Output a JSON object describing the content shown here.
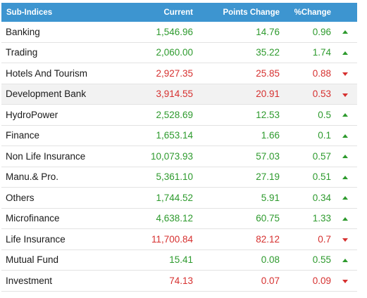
{
  "table": {
    "headers": {
      "name": "Sub-Indices",
      "current": "Current",
      "points": "Points Change",
      "pct": "%Change"
    },
    "rows": [
      {
        "name": "Banking",
        "current": "1,546.96",
        "points": "14.76",
        "pct": "0.96",
        "dir": "up"
      },
      {
        "name": "Trading",
        "current": "2,060.00",
        "points": "35.22",
        "pct": "1.74",
        "dir": "up"
      },
      {
        "name": "Hotels And Tourism",
        "current": "2,927.35",
        "points": "25.85",
        "pct": "0.88",
        "dir": "down"
      },
      {
        "name": "Development Bank",
        "current": "3,914.55",
        "points": "20.91",
        "pct": "0.53",
        "dir": "down"
      },
      {
        "name": "HydroPower",
        "current": "2,528.69",
        "points": "12.53",
        "pct": "0.5",
        "dir": "up"
      },
      {
        "name": "Finance",
        "current": "1,653.14",
        "points": "1.66",
        "pct": "0.1",
        "dir": "up"
      },
      {
        "name": "Non Life Insurance",
        "current": "10,073.93",
        "points": "57.03",
        "pct": "0.57",
        "dir": "up"
      },
      {
        "name": "Manu.& Pro.",
        "current": "5,361.10",
        "points": "27.19",
        "pct": "0.51",
        "dir": "up"
      },
      {
        "name": "Others",
        "current": "1,744.52",
        "points": "5.91",
        "pct": "0.34",
        "dir": "up"
      },
      {
        "name": "Microfinance",
        "current": "4,638.12",
        "points": "60.75",
        "pct": "1.33",
        "dir": "up"
      },
      {
        "name": "Life Insurance",
        "current": "11,700.84",
        "points": "82.12",
        "pct": "0.7",
        "dir": "down"
      },
      {
        "name": "Mutual Fund",
        "current": "15.41",
        "points": "0.08",
        "pct": "0.55",
        "dir": "up"
      },
      {
        "name": "Investment",
        "current": "74.13",
        "points": "0.07",
        "pct": "0.09",
        "dir": "down"
      }
    ]
  },
  "colors": {
    "header_bg": "#3d95d0",
    "up": "#2d9a2d",
    "down": "#d6302f"
  }
}
